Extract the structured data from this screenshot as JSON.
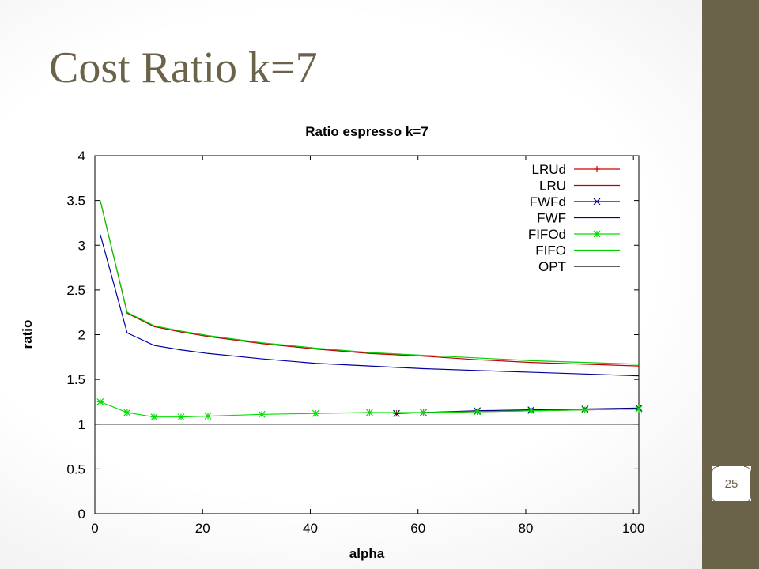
{
  "slide": {
    "title": "Cost Ratio k=7",
    "page_number": "25"
  },
  "colors": {
    "accent": "#6b6349",
    "LRUd": "#d00000",
    "LRU": "#c00000",
    "FWFd": "#000080",
    "FWF": "#0000a0",
    "FIFOd": "#00e000",
    "FIFO": "#00d000",
    "OPT": "#000000"
  },
  "chart_data": {
    "type": "line",
    "title": "Ratio espresso k=7",
    "xlabel": "alpha",
    "ylabel": "ratio",
    "xlim": [
      0,
      101
    ],
    "ylim": [
      0,
      4
    ],
    "x_ticks": [
      "0",
      "20",
      "40",
      "60",
      "80",
      "100"
    ],
    "y_ticks": [
      "0",
      "0.5",
      "1",
      "1.5",
      "2",
      "2.5",
      "3",
      "3.5",
      "4"
    ],
    "x_tick_values": [
      0,
      20,
      40,
      60,
      80,
      100
    ],
    "y_tick_values": [
      0,
      0.5,
      1,
      1.5,
      2,
      2.5,
      3,
      3.5,
      4
    ],
    "grid": false,
    "legend_position": "top-right",
    "x": [
      1,
      6,
      11,
      16,
      21,
      31,
      41,
      51,
      61,
      71,
      81,
      91,
      101
    ],
    "series": [
      {
        "name": "LRUd",
        "marker": "+",
        "color_key": "LRUd",
        "x": [
          56,
          61,
          71,
          81,
          91,
          101
        ],
        "values": [
          1.12,
          1.13,
          1.14,
          1.15,
          1.16,
          1.17
        ]
      },
      {
        "name": "LRU",
        "marker": "none",
        "color_key": "LRU",
        "values": [
          3.5,
          2.24,
          2.09,
          2.03,
          1.98,
          1.9,
          1.84,
          1.79,
          1.76,
          1.72,
          1.69,
          1.67,
          1.65
        ]
      },
      {
        "name": "FWFd",
        "marker": "x",
        "color_key": "FWFd",
        "x": [
          56,
          61,
          71,
          81,
          91,
          101
        ],
        "values": [
          1.12,
          1.13,
          1.15,
          1.16,
          1.17,
          1.18
        ]
      },
      {
        "name": "FWF",
        "marker": "none",
        "color_key": "FWF",
        "values": [
          3.12,
          2.02,
          1.88,
          1.83,
          1.79,
          1.73,
          1.68,
          1.65,
          1.62,
          1.6,
          1.58,
          1.56,
          1.54
        ]
      },
      {
        "name": "FIFOd",
        "marker": "*",
        "color_key": "FIFOd",
        "values": [
          1.25,
          1.13,
          1.08,
          1.08,
          1.09,
          1.11,
          1.12,
          1.13,
          1.13,
          1.14,
          1.15,
          1.16,
          1.17
        ]
      },
      {
        "name": "FIFO",
        "marker": "none",
        "color_key": "FIFO",
        "values": [
          3.5,
          2.25,
          2.1,
          2.04,
          1.99,
          1.91,
          1.85,
          1.8,
          1.77,
          1.74,
          1.71,
          1.69,
          1.67
        ]
      },
      {
        "name": "OPT",
        "marker": "none",
        "color_key": "OPT",
        "values": [
          1,
          1,
          1,
          1,
          1,
          1,
          1,
          1,
          1,
          1,
          1,
          1,
          1
        ]
      }
    ]
  }
}
